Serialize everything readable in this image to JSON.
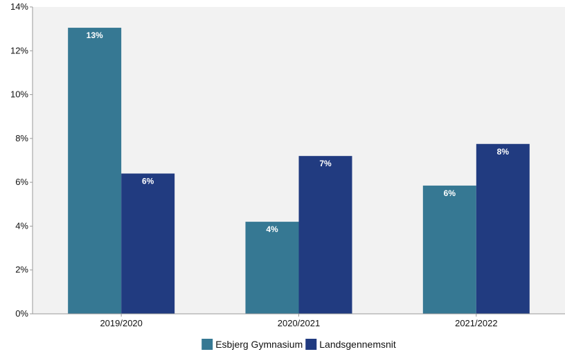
{
  "chart_data": {
    "type": "bar",
    "categories": [
      "2019/2020",
      "2020/2021",
      "2021/2022"
    ],
    "series": [
      {
        "name": "Esbjerg Gymnasium",
        "color": "#367893",
        "values": [
          13.05,
          4.2,
          5.85
        ],
        "labels": [
          "13%",
          "4%",
          "6%"
        ]
      },
      {
        "name": "Landsgennemsnit",
        "color": "#213b80",
        "values": [
          6.4,
          7.2,
          7.75
        ],
        "labels": [
          "6%",
          "7%",
          "8%"
        ]
      }
    ],
    "ylim": [
      0,
      14
    ],
    "yticks": [
      {
        "value": 0,
        "label": "0%"
      },
      {
        "value": 2,
        "label": "2%"
      },
      {
        "value": 4,
        "label": "4%"
      },
      {
        "value": 6,
        "label": "6%"
      },
      {
        "value": 8,
        "label": "8%"
      },
      {
        "value": 10,
        "label": "10%"
      },
      {
        "value": 12,
        "label": "12%"
      },
      {
        "value": 14,
        "label": "14%"
      }
    ],
    "title": "",
    "xlabel": "",
    "ylabel": "",
    "grid": false,
    "legend_position": "bottom",
    "background": "#f2f2f2"
  }
}
